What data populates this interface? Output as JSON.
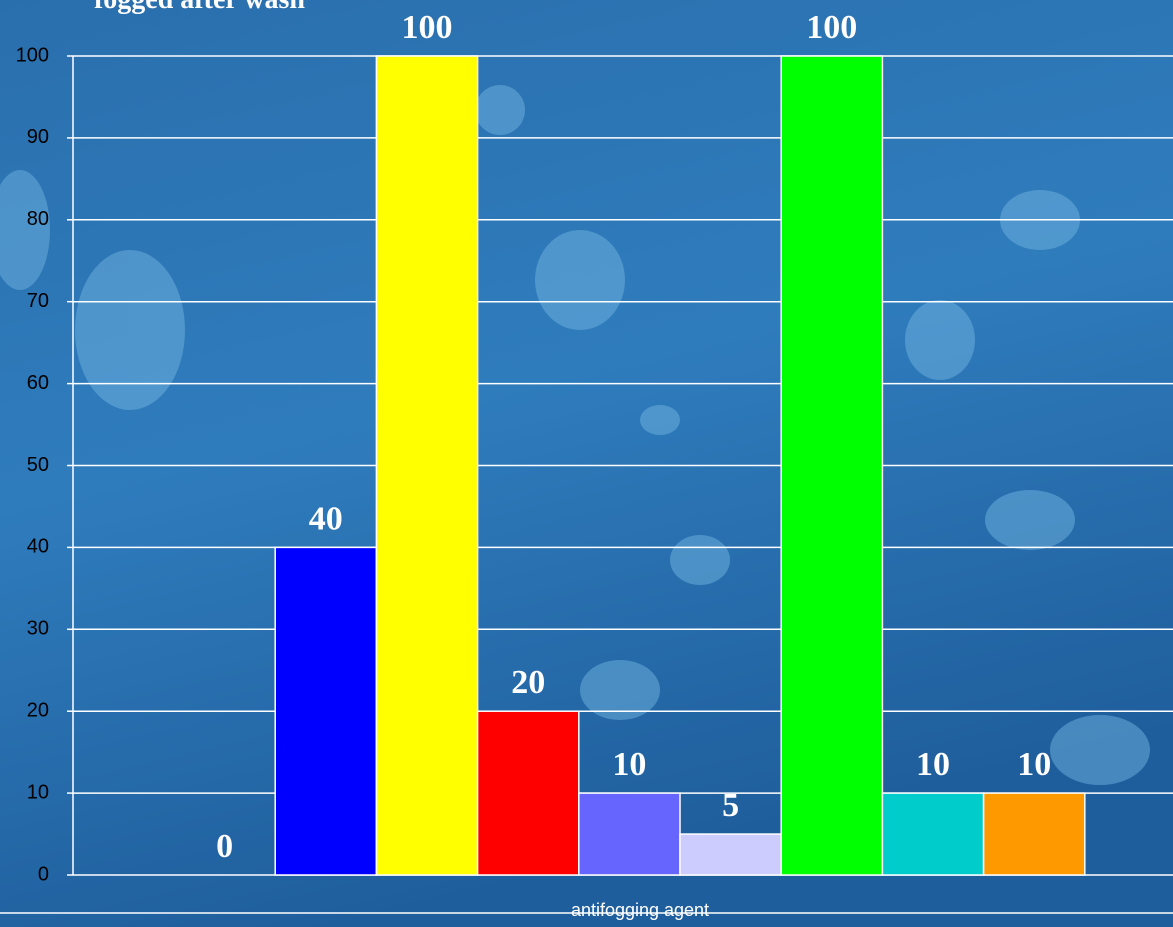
{
  "chart_data": {
    "type": "bar",
    "title": "fogged after wash",
    "x_label": "antifogging agent",
    "categories": [
      null,
      null,
      null,
      null,
      null,
      null,
      null,
      null,
      null
    ],
    "values": [
      0,
      40,
      100,
      20,
      10,
      5,
      100,
      10,
      10
    ],
    "colors": [
      null,
      "#0000ff",
      "#ffff00",
      "#ff0000",
      "#6666ff",
      "#ccccff",
      "#00ff00",
      "#00cccc",
      "#ff9900"
    ],
    "ylim": [
      0,
      100
    ],
    "yticks": [
      0,
      10,
      20,
      30,
      40,
      50,
      60,
      70,
      80,
      90,
      100
    ],
    "grid": true
  }
}
